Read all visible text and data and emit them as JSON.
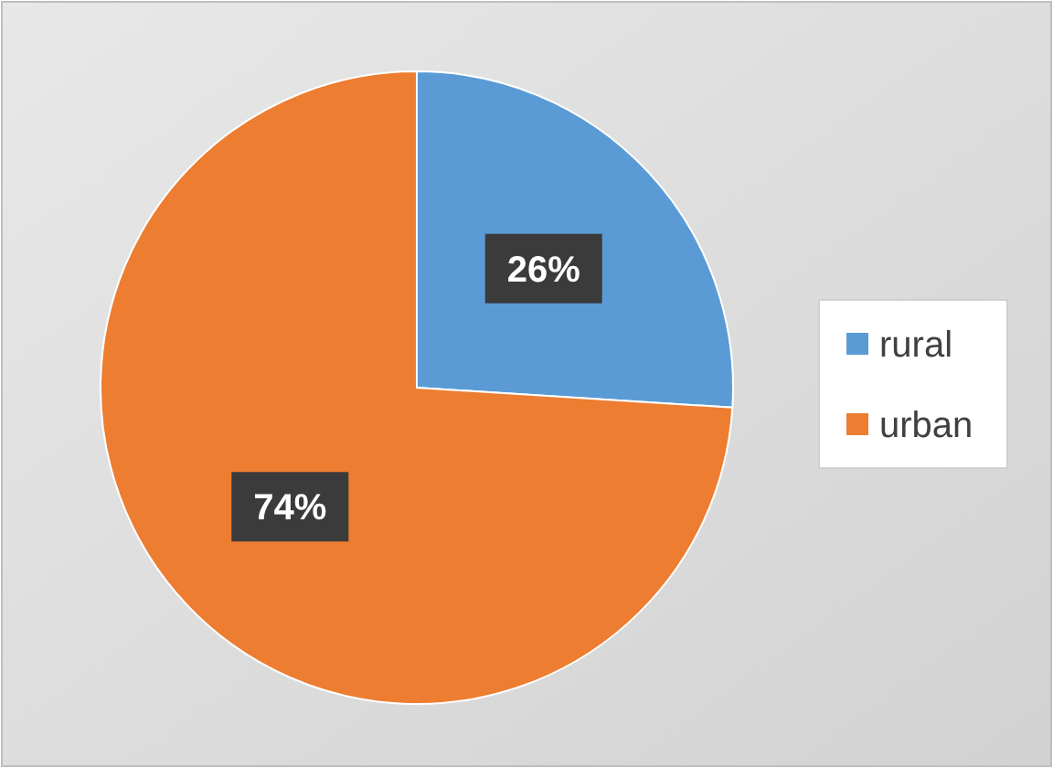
{
  "chart_data": {
    "type": "pie",
    "categories": [
      "rural",
      "urban"
    ],
    "values": [
      26,
      74
    ],
    "colors": [
      "#5b9bd5",
      "#ed7d31"
    ],
    "legend": "right",
    "value_labels": [
      "26%",
      "74%"
    ]
  }
}
